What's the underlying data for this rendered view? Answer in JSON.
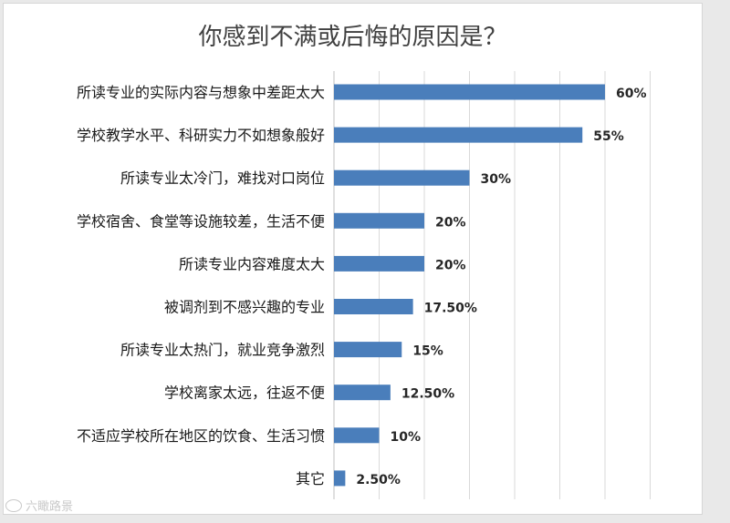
{
  "chart_data": {
    "type": "bar",
    "orientation": "horizontal",
    "title": "你感到不满或后悔的原因是？",
    "categories": [
      "所读专业的实际内容与想象中差距太大",
      "学校教学水平、科研实力不如想象般好",
      "所读专业太冷门，难找对口岗位",
      "学校宿舍、食堂等设施较差，生活不便",
      "所读专业内容难度太大",
      "被调剂到不感兴趣的专业",
      "所读专业太热门，就业竞争激烈",
      "学校离家太远，往返不便",
      "不适应学校所在地区的饮食、生活习惯",
      "其它"
    ],
    "values": [
      60,
      55,
      30,
      20,
      20,
      17.5,
      15,
      12.5,
      10,
      2.5
    ],
    "value_labels": [
      "60%",
      "55%",
      "30%",
      "20%",
      "20%",
      "17.50%",
      "15%",
      "12.50%",
      "10%",
      "2.50%"
    ],
    "xlim": [
      0,
      70
    ],
    "grid": true,
    "bar_color": "#4a7ebb"
  },
  "watermark": "六瞰路景"
}
